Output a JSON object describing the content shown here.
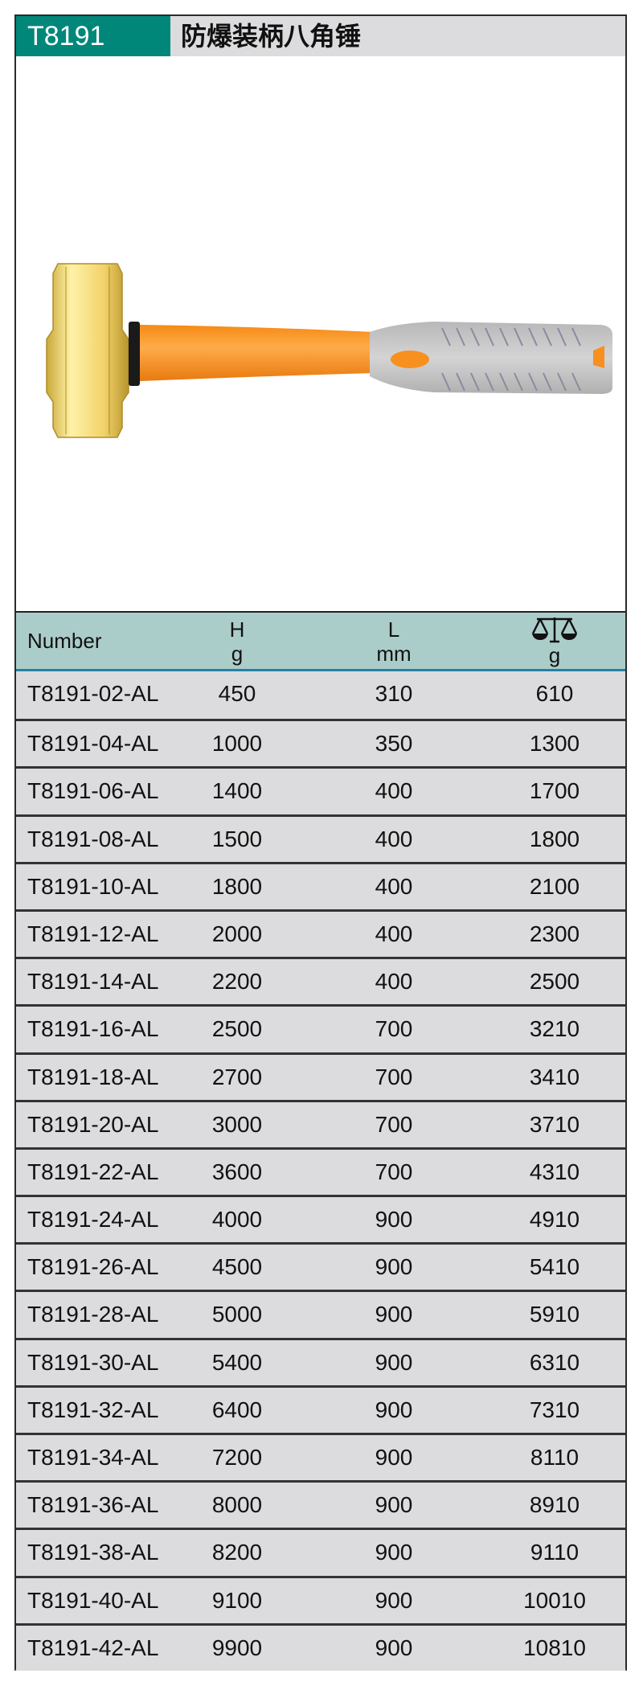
{
  "header": {
    "code": "T8191",
    "title": "防爆装柄八角锤"
  },
  "colors": {
    "accent": "#00877a",
    "header_bg": "#abcdc9",
    "row_bg": "#dcdcde",
    "head": "#f2d26a",
    "handle": "#f7901e",
    "grip": "#c8c8c8"
  },
  "table": {
    "columns": [
      {
        "label": "Number",
        "unit": ""
      },
      {
        "label": "H",
        "unit": "g"
      },
      {
        "label": "L",
        "unit": "mm"
      },
      {
        "icon": "balance-scale-icon",
        "unit": "g"
      }
    ],
    "rows": [
      [
        "T8191-02-AL",
        "450",
        "310",
        "610"
      ],
      [
        "T8191-04-AL",
        "1000",
        "350",
        "1300"
      ],
      [
        "T8191-06-AL",
        "1400",
        "400",
        "1700"
      ],
      [
        "T8191-08-AL",
        "1500",
        "400",
        "1800"
      ],
      [
        "T8191-10-AL",
        "1800",
        "400",
        "2100"
      ],
      [
        "T8191-12-AL",
        "2000",
        "400",
        "2300"
      ],
      [
        "T8191-14-AL",
        "2200",
        "400",
        "2500"
      ],
      [
        "T8191-16-AL",
        "2500",
        "700",
        "3210"
      ],
      [
        "T8191-18-AL",
        "2700",
        "700",
        "3410"
      ],
      [
        "T8191-20-AL",
        "3000",
        "700",
        "3710"
      ],
      [
        "T8191-22-AL",
        "3600",
        "700",
        "4310"
      ],
      [
        "T8191-24-AL",
        "4000",
        "900",
        "4910"
      ],
      [
        "T8191-26-AL",
        "4500",
        "900",
        "5410"
      ],
      [
        "T8191-28-AL",
        "5000",
        "900",
        "5910"
      ],
      [
        "T8191-30-AL",
        "5400",
        "900",
        "6310"
      ],
      [
        "T8191-32-AL",
        "6400",
        "900",
        "7310"
      ],
      [
        "T8191-34-AL",
        "7200",
        "900",
        "8110"
      ],
      [
        "T8191-36-AL",
        "8000",
        "900",
        "8910"
      ],
      [
        "T8191-38-AL",
        "8200",
        "900",
        "9110"
      ],
      [
        "T8191-40-AL",
        "9100",
        "900",
        "10010"
      ],
      [
        "T8191-42-AL",
        "9900",
        "900",
        "10810"
      ]
    ]
  }
}
